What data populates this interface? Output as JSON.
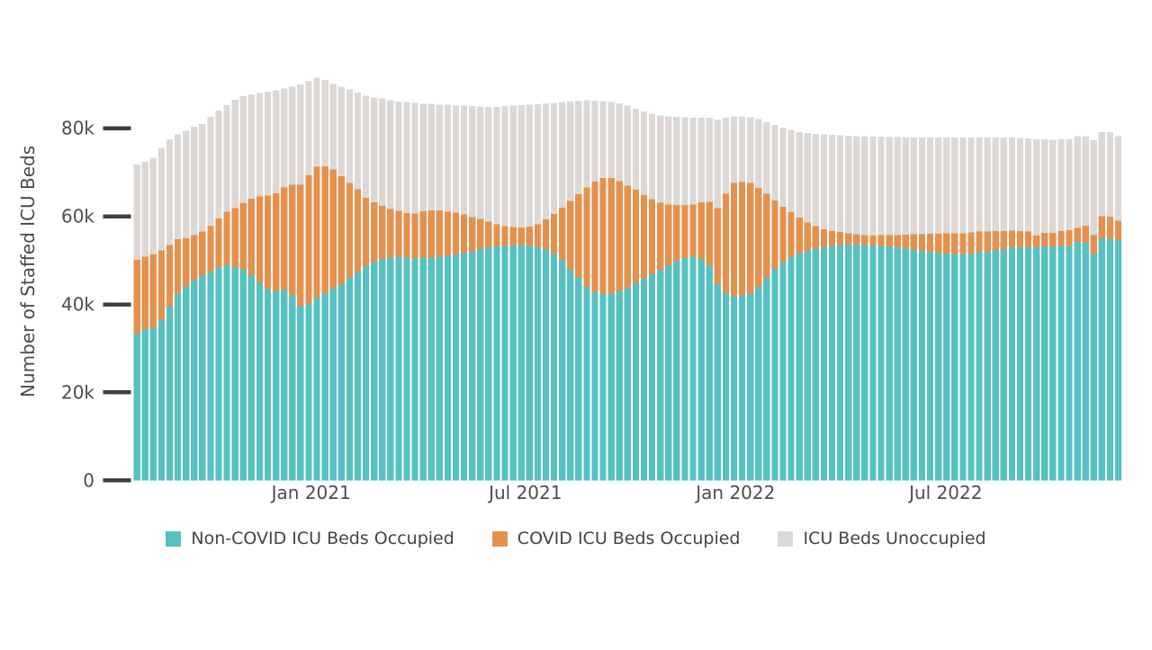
{
  "chart_data": {
    "type": "bar",
    "stacked": true,
    "unit": "thousands of beds",
    "title": "",
    "ylabel": "Number of Staffed ICU Beds",
    "y_ticks": [
      "0",
      "20k",
      "40k",
      "60k",
      "80k"
    ],
    "y_tick_values_k": [
      0,
      20,
      40,
      60,
      80
    ],
    "ylim_k": [
      0,
      94
    ],
    "grid": false,
    "legend_position": "bottom-center",
    "x_axis": "weekly bars, Aug 2020 - Dec 2022",
    "x_tick_labels": [
      "Jan 2021",
      "Jul 2021",
      "Jan 2022",
      "Jul 2022"
    ],
    "x_tick_bar_index": [
      21.3,
      47.5,
      73.2,
      98.9
    ],
    "colors": {
      "non_covid": "#57c1c1",
      "covid": "#e5914d",
      "unoccupied": "#dcd8d6",
      "tick_dash": "#3f3f3f",
      "tick_label": "#4e4e4e",
      "axis_title": "#4a4a4a"
    },
    "series": [
      {
        "name": "Non-COVID ICU Beds Occupied",
        "color": "#57c1c1",
        "values": [
          33.3,
          34.3,
          34.6,
          36.5,
          39.5,
          42.5,
          44.0,
          45.5,
          46.5,
          47.5,
          48.3,
          49.0,
          48.5,
          48.0,
          46.5,
          45.0,
          43.5,
          43.0,
          43.4,
          42.0,
          39.6,
          40.1,
          41.5,
          42.6,
          43.6,
          44.6,
          46.0,
          47.5,
          48.6,
          49.6,
          50.3,
          50.6,
          50.8,
          50.6,
          50.4,
          50.6,
          50.6,
          50.8,
          51.0,
          51.3,
          51.6,
          52.0,
          52.6,
          53.0,
          53.2,
          53.3,
          53.4,
          53.5,
          53.3,
          53.0,
          52.5,
          51.5,
          50.0,
          48.0,
          46.0,
          44.0,
          42.8,
          42.3,
          42.5,
          43.0,
          43.8,
          44.8,
          45.8,
          46.8,
          47.8,
          48.8,
          49.8,
          50.5,
          50.8,
          50.3,
          48.8,
          44.6,
          42.6,
          41.8,
          42.0,
          42.5,
          44.0,
          46.0,
          48.0,
          49.6,
          50.8,
          51.6,
          52.2,
          52.7,
          53.0,
          53.3,
          53.5,
          53.6,
          53.6,
          53.5,
          53.4,
          53.3,
          53.2,
          53.0,
          52.8,
          52.5,
          52.2,
          52.0,
          51.7,
          51.5,
          51.4,
          51.3,
          51.5,
          51.8,
          52.0,
          52.3,
          52.6,
          52.9,
          53.0,
          53.0,
          53.0,
          53.3,
          53.1,
          53.4,
          53.2,
          54.2,
          54.0,
          51.4,
          55.0,
          54.9,
          54.6
        ]
      },
      {
        "name": "COVID ICU Beds Occupied",
        "color": "#e5914d",
        "values": [
          16.8,
          16.5,
          16.7,
          15.8,
          14.0,
          12.3,
          11.0,
          10.2,
          10.0,
          10.3,
          11.2,
          12.0,
          13.4,
          15.0,
          17.5,
          19.5,
          21.2,
          22.2,
          23.2,
          25.2,
          27.6,
          29.2,
          29.8,
          28.8,
          27.0,
          24.5,
          21.6,
          18.6,
          15.6,
          13.6,
          12.1,
          11.1,
          10.4,
          10.1,
          10.2,
          10.5,
          10.8,
          10.5,
          10.0,
          9.5,
          8.8,
          7.8,
          6.8,
          5.8,
          5.0,
          4.5,
          4.2,
          4.0,
          4.4,
          5.2,
          6.8,
          9.0,
          12.0,
          15.5,
          19.0,
          22.6,
          25.1,
          26.4,
          26.2,
          25.0,
          23.2,
          21.2,
          19.0,
          17.1,
          15.3,
          13.9,
          12.8,
          12.1,
          11.9,
          12.9,
          14.5,
          17.3,
          22.5,
          25.8,
          25.8,
          25.1,
          22.5,
          19.1,
          15.6,
          12.6,
          10.1,
          8.1,
          6.4,
          5.1,
          4.1,
          3.4,
          2.9,
          2.5,
          2.3,
          2.2,
          2.2,
          2.4,
          2.5,
          2.7,
          3.0,
          3.4,
          3.7,
          4.0,
          4.3,
          4.6,
          4.7,
          4.8,
          4.8,
          4.7,
          4.5,
          4.3,
          4.1,
          3.9,
          3.7,
          3.5,
          2.6,
          2.9,
          3.1,
          3.3,
          3.7,
          3.2,
          3.9,
          4.3,
          5.0,
          5.0,
          4.4
        ]
      },
      {
        "name": "ICU Beds Unoccupied",
        "color": "#dcd8d6",
        "values": [
          21.7,
          21.6,
          22.0,
          23.2,
          24.0,
          23.8,
          24.4,
          24.6,
          24.5,
          24.8,
          24.5,
          24.3,
          24.6,
          24.3,
          23.7,
          23.5,
          23.6,
          23.4,
          22.4,
          22.2,
          22.8,
          21.5,
          20.2,
          19.6,
          19.5,
          20.3,
          21.2,
          22.0,
          23.2,
          23.8,
          24.4,
          24.7,
          24.9,
          25.3,
          25.2,
          24.5,
          24.2,
          24.1,
          24.4,
          24.3,
          24.7,
          25.2,
          25.5,
          26.0,
          26.6,
          27.2,
          27.5,
          27.8,
          27.7,
          27.3,
          26.4,
          25.3,
          24.0,
          22.7,
          21.3,
          19.8,
          18.4,
          17.5,
          17.3,
          17.7,
          18.1,
          18.4,
          19.0,
          19.4,
          19.8,
          20.0,
          20.0,
          19.9,
          19.7,
          19.2,
          19.1,
          20.1,
          17.3,
          15.1,
          14.9,
          14.9,
          15.6,
          16.3,
          17.2,
          17.9,
          18.7,
          19.4,
          20.3,
          20.9,
          21.5,
          21.8,
          22.0,
          22.2,
          22.3,
          22.5,
          22.5,
          22.4,
          22.3,
          22.3,
          22.2,
          22.0,
          22.0,
          21.9,
          21.9,
          21.8,
          21.8,
          21.8,
          21.6,
          21.4,
          21.4,
          21.3,
          21.2,
          21.1,
          21.1,
          21.2,
          21.9,
          21.3,
          21.2,
          20.8,
          20.6,
          20.8,
          20.3,
          21.6,
          19.1,
          19.2,
          19.2
        ]
      }
    ]
  }
}
